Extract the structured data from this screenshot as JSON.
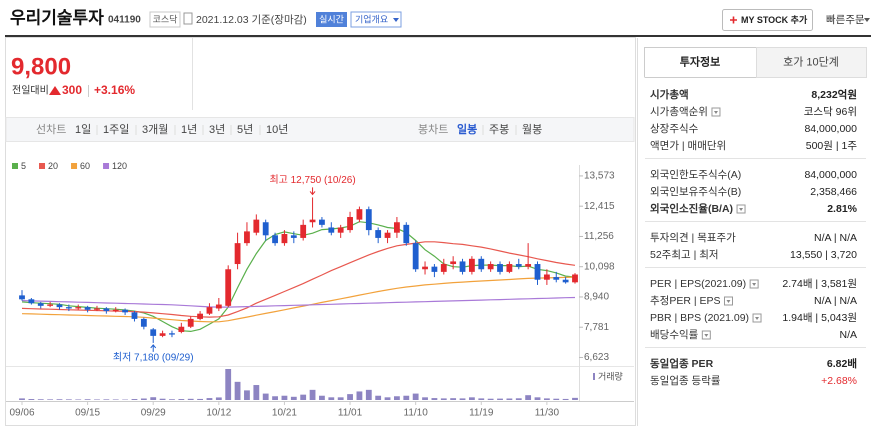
{
  "header": {
    "title": "우리기술투자",
    "code": "041190",
    "market": "코스닥",
    "date": "2021.12.03 기준(장마감)",
    "realtime": "실시간",
    "overview": "기업개요",
    "mystock": "MY STOCK 추가",
    "quick_order": "빠른주문"
  },
  "price": {
    "current": "9,800",
    "change_label": "전일대비",
    "change": "300",
    "change_rate": "+3.16%"
  },
  "chart_tabs": {
    "line_label": "선차트",
    "line_periods": [
      "1일",
      "1주일",
      "3개월",
      "1년",
      "3년",
      "5년",
      "10년"
    ],
    "candle_label": "봉차트",
    "candle_periods": [
      "일봉",
      "주봉",
      "월봉"
    ]
  },
  "chart_data": {
    "type": "candlestick",
    "categories": [
      "09/06",
      null,
      null,
      null,
      null,
      null,
      null,
      "09/15",
      null,
      null,
      null,
      null,
      null,
      null,
      "09/29",
      null,
      null,
      null,
      null,
      null,
      null,
      "10/12",
      null,
      null,
      null,
      null,
      null,
      null,
      "10/21",
      null,
      null,
      null,
      null,
      null,
      null,
      "11/01",
      null,
      null,
      null,
      null,
      null,
      null,
      "11/10",
      null,
      null,
      null,
      null,
      null,
      null,
      "11/19",
      null,
      null,
      null,
      null,
      null,
      null,
      "11/30",
      null,
      null,
      null
    ],
    "open": [
      9000,
      8850,
      8700,
      8600,
      8650,
      8550,
      8500,
      8550,
      8450,
      8500,
      8400,
      8450,
      8350,
      8100,
      7700,
      7450,
      7550,
      7600,
      7800,
      8100,
      8300,
      8500,
      8600,
      10200,
      11000,
      11400,
      11800,
      11300,
      11000,
      11300,
      11200,
      11800,
      11900,
      11600,
      11400,
      11500,
      11900,
      12300,
      11500,
      11200,
      11400,
      11700,
      11000,
      10000,
      10100,
      9900,
      10200,
      10300,
      9900,
      10400,
      10000,
      10200,
      9900,
      10200,
      10100,
      10200,
      9600,
      9700,
      9600,
      9500
    ],
    "high": [
      9200,
      8900,
      8750,
      8750,
      8700,
      8650,
      8650,
      8600,
      8600,
      8550,
      8550,
      8500,
      8400,
      8150,
      7750,
      7650,
      7650,
      7950,
      8200,
      8400,
      8700,
      8900,
      10150,
      11400,
      11800,
      12100,
      11900,
      11400,
      11500,
      11450,
      11900,
      12750,
      12000,
      11800,
      11700,
      12200,
      12400,
      12400,
      11600,
      11500,
      12000,
      11800,
      11100,
      10300,
      10200,
      10400,
      10500,
      10400,
      10500,
      10500,
      10300,
      10300,
      10300,
      10400,
      11000,
      10300,
      10000,
      9900,
      9700,
      9850
    ],
    "low": [
      8800,
      8650,
      8500,
      8550,
      8450,
      8400,
      8450,
      8350,
      8400,
      8300,
      8350,
      8250,
      8000,
      7700,
      7180,
      7400,
      7400,
      7550,
      7750,
      8050,
      8250,
      8400,
      8550,
      10000,
      10900,
      11300,
      11100,
      10900,
      10900,
      11000,
      11100,
      11600,
      11600,
      11300,
      11200,
      11400,
      11800,
      11300,
      11000,
      11000,
      11200,
      10900,
      9900,
      9800,
      9700,
      9800,
      10000,
      9800,
      9800,
      9900,
      9900,
      9800,
      9850,
      10000,
      10000,
      9400,
      9400,
      9500,
      9450,
      9450
    ],
    "close": [
      8850,
      8700,
      8600,
      8650,
      8550,
      8500,
      8550,
      8450,
      8500,
      8400,
      8450,
      8350,
      8100,
      7800,
      7450,
      7550,
      7500,
      7800,
      8100,
      8300,
      8550,
      8650,
      10000,
      11000,
      11450,
      11900,
      11300,
      11000,
      11350,
      11200,
      11700,
      11900,
      11700,
      11400,
      11600,
      12000,
      12300,
      11500,
      11200,
      11400,
      11800,
      11000,
      10000,
      10100,
      9900,
      10200,
      10300,
      9900,
      10400,
      10000,
      10200,
      9900,
      10200,
      10100,
      10200,
      9600,
      9800,
      9600,
      9500,
      9800
    ],
    "up_color": "#e3292e",
    "down_color": "#1f5fcf",
    "moving_averages": [
      {
        "name": "5",
        "color": "#5ab04c",
        "values": [
          8750,
          8720,
          8700,
          8680,
          8660,
          8600,
          8570,
          8540,
          8510,
          8490,
          8470,
          8440,
          8400,
          8330,
          8200,
          8000,
          7800,
          7650,
          7620,
          7700,
          7900,
          8100,
          8550,
          9300,
          10000,
          10600,
          11100,
          11330,
          11430,
          11360,
          11300,
          11380,
          11520,
          11540,
          11580,
          11650,
          11820,
          11780,
          11700,
          11600,
          11560,
          11400,
          11100,
          10750,
          10500,
          10200,
          10100,
          10080,
          10140,
          10160,
          10160,
          10140,
          10140,
          10100,
          10120,
          10000,
          9950,
          9860,
          9740,
          9700
        ]
      },
      {
        "name": "20",
        "color": "#e8584f",
        "values": [
          8500,
          8490,
          8480,
          8470,
          8460,
          8450,
          8440,
          8430,
          8420,
          8410,
          8400,
          8390,
          8380,
          8360,
          8330,
          8300,
          8270,
          8230,
          8200,
          8180,
          8170,
          8180,
          8250,
          8380,
          8520,
          8700,
          8850,
          9000,
          9150,
          9300,
          9450,
          9620,
          9780,
          9950,
          10100,
          10250,
          10400,
          10550,
          10680,
          10800,
          10900,
          10950,
          11000,
          11050,
          11050,
          11020,
          10980,
          10950,
          10900,
          10850,
          10780,
          10700,
          10620,
          10550,
          10480,
          10400,
          10330,
          10260,
          10200,
          10150
        ]
      },
      {
        "name": "60",
        "color": "#f2a23c",
        "values": [
          8300,
          8290,
          8280,
          8270,
          8260,
          8250,
          8240,
          8230,
          8220,
          8210,
          8200,
          8190,
          8180,
          8160,
          8130,
          8100,
          8070,
          8040,
          8020,
          8000,
          7990,
          7990,
          8030,
          8100,
          8170,
          8240,
          8310,
          8380,
          8450,
          8520,
          8590,
          8660,
          8730,
          8800,
          8870,
          8940,
          9010,
          9080,
          9150,
          9210,
          9270,
          9320,
          9360,
          9400,
          9430,
          9460,
          9490,
          9510,
          9530,
          9550,
          9570,
          9590,
          9610,
          9630,
          9650,
          9660,
          9670,
          9680,
          9690,
          9700
        ]
      },
      {
        "name": "120",
        "color": "#a97ad8",
        "values": [
          8800,
          8790,
          8780,
          8770,
          8760,
          8750,
          8740,
          8730,
          8720,
          8710,
          8700,
          8690,
          8680,
          8670,
          8660,
          8650,
          8640,
          8620,
          8600,
          8580,
          8560,
          8550,
          8550,
          8560,
          8570,
          8580,
          8590,
          8600,
          8610,
          8620,
          8630,
          8640,
          8650,
          8660,
          8670,
          8680,
          8690,
          8700,
          8710,
          8720,
          8730,
          8740,
          8750,
          8760,
          8770,
          8780,
          8790,
          8800,
          8810,
          8820,
          8830,
          8840,
          8850,
          8860,
          8870,
          8880,
          8890,
          8900,
          8910,
          8920
        ]
      }
    ],
    "volume": {
      "label": "거래량",
      "color": "#8d84c2",
      "values": [
        1500000,
        900000,
        700000,
        600000,
        700000,
        600000,
        500000,
        700000,
        500000,
        600000,
        500000,
        400000,
        900000,
        1400000,
        2600000,
        1200000,
        700000,
        900000,
        1100000,
        1000000,
        1800000,
        2400000,
        29000000,
        17000000,
        9000000,
        14000000,
        6000000,
        3500000,
        4000000,
        3000000,
        5000000,
        9500000,
        4000000,
        2500000,
        2500000,
        5500000,
        8000000,
        9500000,
        4000000,
        2500000,
        3500000,
        4000000,
        6000000,
        2500000,
        1800000,
        1500000,
        1700000,
        1500000,
        2500000,
        1500000,
        1200000,
        1300000,
        1400000,
        1600000,
        4500000,
        2500000,
        1500000,
        1200000,
        1000000,
        2000000
      ]
    },
    "annotations": {
      "high": "최고 12,750 (10/26)",
      "low": "최저 7,180 (09/29)"
    },
    "ylim": [
      6450,
      13800
    ],
    "yticks": [
      {
        "value": 6623,
        "label": "6,623"
      },
      {
        "value": 7781,
        "label": "7,781"
      },
      {
        "value": 8940,
        "label": "8,940"
      },
      {
        "value": 10098,
        "label": "10,098"
      },
      {
        "value": 11256,
        "label": "11,256"
      },
      {
        "value": 12415,
        "label": "12,415"
      },
      {
        "value": 13573,
        "label": "13,573"
      }
    ]
  },
  "invest_info": {
    "tabs": [
      "투자정보",
      "호가 10단계"
    ],
    "groups": [
      [
        {
          "label": "시가총액",
          "value": "8,232억원",
          "bold": true
        },
        {
          "label": "시가총액순위",
          "value": "코스닥 96위",
          "icon": true
        },
        {
          "label": "상장주식수",
          "value": "84,000,000"
        },
        {
          "label": "액면가 | 매매단위",
          "value": "500원 | 1주"
        }
      ],
      [
        {
          "label": "외국인한도주식수(A)",
          "value": "84,000,000"
        },
        {
          "label": "외국인보유주식수(B)",
          "value": "2,358,466"
        },
        {
          "label": "외국인소진율(B/A)",
          "value": "2.81%",
          "bold": true,
          "icon": true
        }
      ],
      [
        {
          "label": "투자의견 | 목표주가",
          "value": "N/A | N/A"
        },
        {
          "label": "52주최고 | 최저",
          "value": "13,550 | 3,720"
        }
      ],
      [
        {
          "label": "PER | EPS(2021.09)",
          "value": "2.74배 | 3,581원",
          "icon": true
        },
        {
          "label": "추정PER | EPS",
          "value": "N/A | N/A",
          "icon": true
        },
        {
          "label": "PBR | BPS (2021.09)",
          "value": "1.94배 | 5,043원",
          "icon": true
        },
        {
          "label": "배당수익률",
          "value": "N/A",
          "icon": true
        }
      ],
      [
        {
          "label": "동일업종 PER",
          "value": "6.82배",
          "bold": true
        },
        {
          "label": "동일업종 등락률",
          "value": "+2.68%",
          "color": "#e3292e"
        }
      ]
    ]
  }
}
